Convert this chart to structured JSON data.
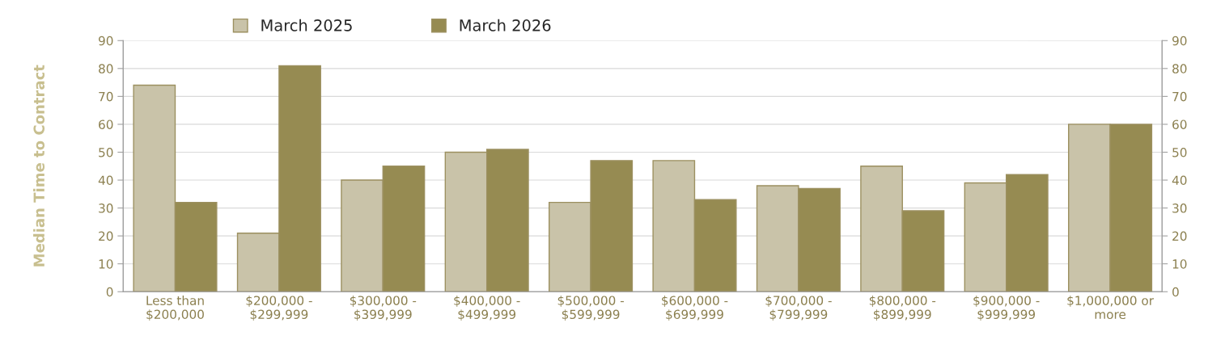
{
  "chart_data": {
    "type": "bar",
    "ylabel": "Median Time to Contract",
    "categories": [
      "Less than\n$200,000",
      "$200,000 -\n$299,999",
      "$300,000 -\n$399,999",
      "$400,000 -\n$499,999",
      "$500,000 -\n$599,999",
      "$600,000 -\n$699,999",
      "$700,000 -\n$799,999",
      "$800,000 -\n$899,999",
      "$900,000 -\n$999,999",
      "$1,000,000 or\nmore"
    ],
    "series": [
      {
        "name": "March 2025",
        "color": "#c9c3a9",
        "values": [
          74,
          21,
          40,
          50,
          32,
          47,
          38,
          45,
          39,
          60
        ]
      },
      {
        "name": "March 2026",
        "color": "#968b52",
        "values": [
          32,
          81,
          45,
          51,
          47,
          33,
          37,
          29,
          42,
          60
        ]
      }
    ],
    "ylim": [
      0,
      90
    ],
    "yticks": [
      0,
      10,
      20,
      30,
      40,
      50,
      60,
      70,
      80,
      90
    ],
    "y2lim": [
      0,
      90
    ],
    "y2ticks": [
      0,
      10,
      20,
      30,
      40,
      50,
      60,
      70,
      80,
      90
    ],
    "grid": "y",
    "legend": "top"
  }
}
